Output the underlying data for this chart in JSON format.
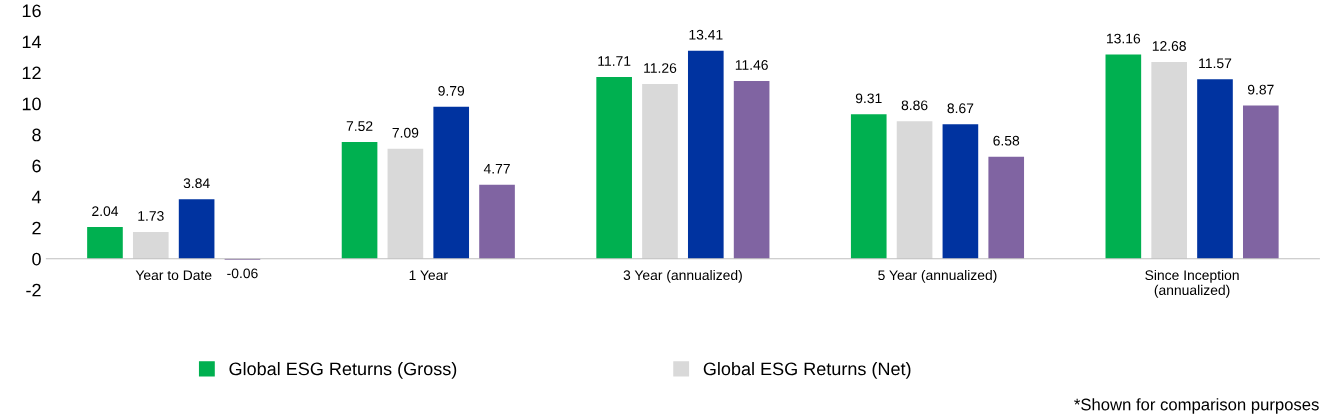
{
  "chart_data": {
    "type": "bar",
    "categories": [
      "Year to Date",
      "1 Year",
      "3 Year (annualized)",
      "5 Year (annualized)",
      "Since Inception\n(annualized)"
    ],
    "series": [
      {
        "name": "Global ESG Returns (Gross)",
        "color": "#00b050",
        "values": [
          2.04,
          7.52,
          11.71,
          9.31,
          13.16
        ]
      },
      {
        "name": "Global ESG Returns (Net)",
        "color": "#d9d9d9",
        "values": [
          1.73,
          7.09,
          11.26,
          8.86,
          12.68
        ]
      },
      {
        "color": "#0033a0",
        "values": [
          3.84,
          9.79,
          13.41,
          8.67,
          11.57
        ]
      },
      {
        "color": "#8064a2",
        "values": [
          -0.06,
          4.77,
          11.46,
          6.58,
          9.87
        ]
      }
    ],
    "ylim": [
      -2,
      16
    ],
    "yticks": [
      -2,
      0,
      2,
      4,
      6,
      8,
      10,
      12,
      14,
      16
    ],
    "grid": false,
    "legend": "bottom",
    "data_labels": true,
    "annotations": [
      "*Shown for comparison purposes"
    ]
  }
}
